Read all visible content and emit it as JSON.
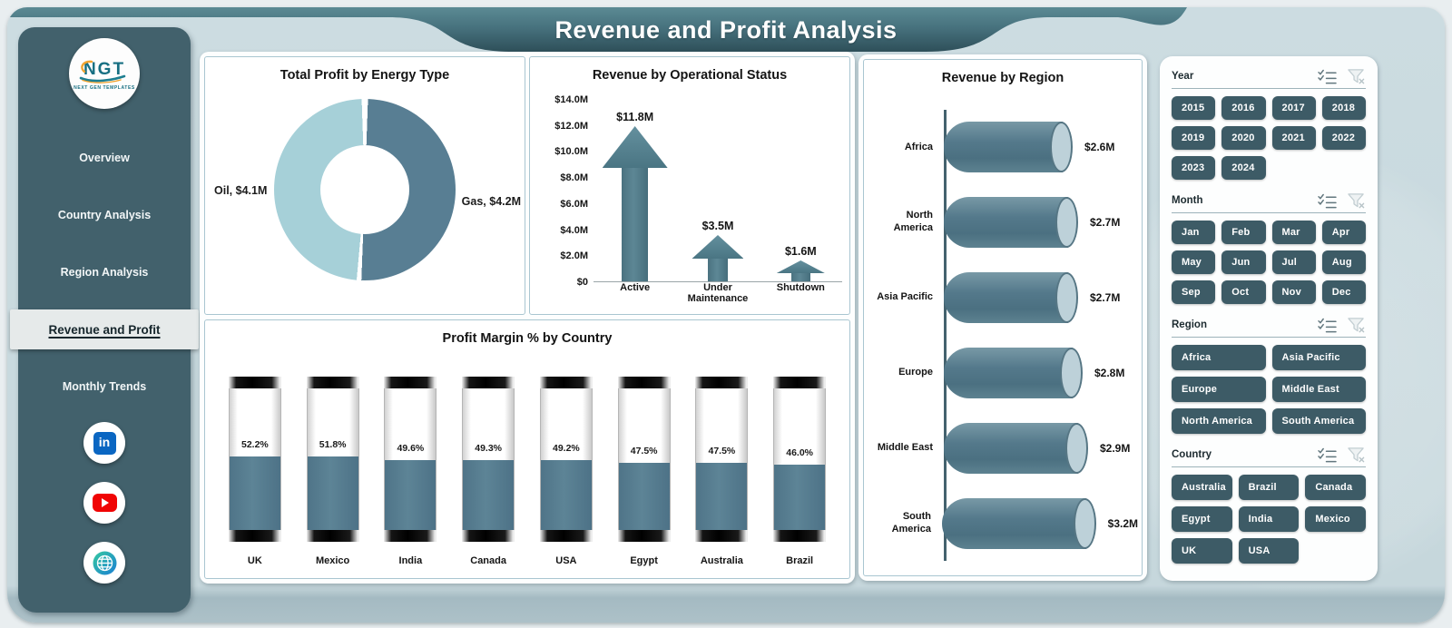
{
  "page_title": "Revenue and Profit Analysis",
  "sidebar": {
    "logo_text": "NGT",
    "logo_subtext": "NEXT GEN TEMPLATES",
    "items": [
      {
        "label": "Overview",
        "active": false
      },
      {
        "label": "Country Analysis",
        "active": false
      },
      {
        "label": "Region Analysis",
        "active": false
      },
      {
        "label": "Revenue and Profit",
        "active": true
      },
      {
        "label": "Monthly Trends",
        "active": false
      }
    ],
    "social": [
      "linkedin",
      "youtube",
      "website"
    ]
  },
  "chart_data": [
    {
      "type": "pie",
      "title": "Total Profit by Energy Type",
      "labels": [
        "Oil",
        "Gas"
      ],
      "values": [
        4.1,
        4.2
      ],
      "data_labels": [
        "Oil, $4.1M",
        "Gas, $4.2M"
      ],
      "colors": [
        "#a6d0d8",
        "#587e93"
      ],
      "donut": true
    },
    {
      "type": "bar",
      "title": "Revenue by Operational Status",
      "bar_style": "up-arrow",
      "categories": [
        "Active",
        "Under Maintenance",
        "Shutdown"
      ],
      "values": [
        11.8,
        3.5,
        1.6
      ],
      "data_labels": [
        "$11.8M",
        "$3.5M",
        "$1.6M"
      ],
      "yticks": [
        "$14.0M",
        "$12.0M",
        "$10.0M",
        "$8.0M",
        "$6.0M",
        "$4.0M",
        "$2.0M",
        "$0"
      ],
      "ylim": [
        0,
        14
      ],
      "grid": false
    },
    {
      "type": "bar",
      "title": "Profit Margin % by Country",
      "bar_style": "vertical-thermometer-cylinder",
      "categories": [
        "UK",
        "Mexico",
        "India",
        "Canada",
        "USA",
        "Egypt",
        "Australia",
        "Brazil"
      ],
      "values": [
        52.2,
        51.8,
        49.6,
        49.3,
        49.2,
        47.5,
        47.5,
        46.0
      ],
      "data_labels": [
        "52.2%",
        "51.8%",
        "49.6%",
        "49.3%",
        "49.2%",
        "47.5%",
        "47.5%",
        "46.0%"
      ],
      "ylim": [
        0,
        100
      ],
      "grid": false
    },
    {
      "type": "bar",
      "title": "Revenue by Region",
      "bar_style": "horizontal-cylinder",
      "categories": [
        "Africa",
        "North America",
        "Asia Pacific",
        "Europe",
        "Middle East",
        "South America"
      ],
      "values": [
        2.6,
        2.7,
        2.7,
        2.8,
        2.9,
        3.2
      ],
      "data_labels": [
        "$2.6M",
        "$2.7M",
        "$2.7M",
        "$2.8M",
        "$2.9M",
        "$3.2M"
      ],
      "grid": false
    }
  ],
  "slicers": [
    {
      "label": "Year",
      "columns": 4,
      "options": [
        "2015",
        "2016",
        "2017",
        "2018",
        "2019",
        "2020",
        "2021",
        "2022",
        "2023",
        "2024"
      ]
    },
    {
      "label": "Month",
      "columns": 4,
      "options": [
        "Jan",
        "Feb",
        "Mar",
        "Apr",
        "May",
        "Jun",
        "Jul",
        "Aug",
        "Sep",
        "Oct",
        "Nov",
        "Dec"
      ]
    },
    {
      "label": "Region",
      "columns": 2,
      "options": [
        "Africa",
        "Asia Pacific",
        "Europe",
        "Middle East",
        "North America",
        "South America"
      ]
    },
    {
      "label": "Country",
      "columns": 3,
      "options": [
        "Australia",
        "Brazil",
        "Canada",
        "Egypt",
        "India",
        "Mexico",
        "UK",
        "USA"
      ]
    }
  ],
  "colors": {
    "dashboard_bg": "#c7d8dd",
    "sidebar_bg": "#42616c",
    "banner_top": "#5b8a94",
    "banner_bottom": "#2e4f59",
    "slicer_button_bg": "#3d5b66",
    "bar_fill": "#587e91",
    "pie_oil": "#a6d0d8",
    "pie_gas": "#587e93",
    "linkedin_blue": "#0a66c2",
    "youtube_red": "#f00404"
  }
}
